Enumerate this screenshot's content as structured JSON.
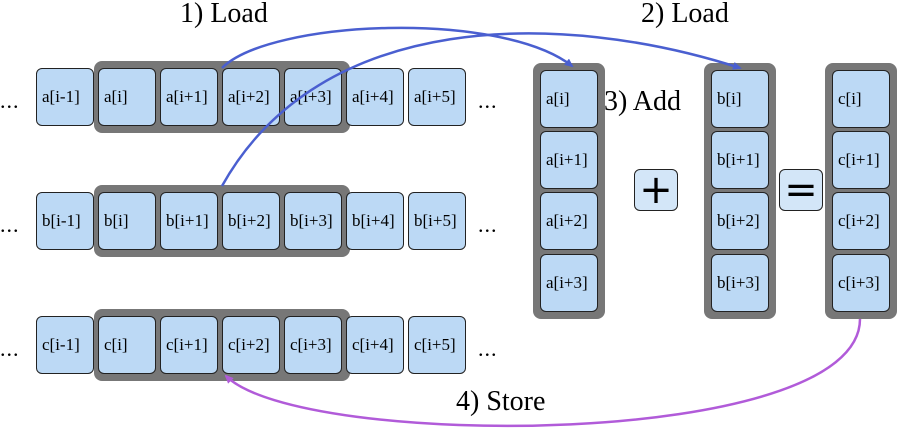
{
  "arrays": [
    {
      "id": "a",
      "cells": [
        "a[i-1]",
        "a[i]",
        "a[i+1]",
        "a[i+2]",
        "a[i+3]",
        "a[i+4]",
        "a[i+5]"
      ],
      "ellipsis": "..."
    },
    {
      "id": "b",
      "cells": [
        "b[i-1]",
        "b[i]",
        "b[i+1]",
        "b[i+2]",
        "b[i+3]",
        "b[i+4]",
        "b[i+5]"
      ],
      "ellipsis": "..."
    },
    {
      "id": "c",
      "cells": [
        "c[i-1]",
        "c[i]",
        "c[i+1]",
        "c[i+2]",
        "c[i+3]",
        "c[i+4]",
        "c[i+5]"
      ],
      "ellipsis": "..."
    }
  ],
  "registers": [
    {
      "id": "a",
      "cells": [
        "a[i]",
        "a[i+1]",
        "a[i+2]",
        "a[i+3]"
      ]
    },
    {
      "id": "b",
      "cells": [
        "b[i]",
        "b[i+1]",
        "b[i+2]",
        "b[i+3]"
      ]
    },
    {
      "id": "c",
      "cells": [
        "c[i]",
        "c[i+1]",
        "c[i+2]",
        "c[i+3]"
      ]
    }
  ],
  "labels": {
    "load1": "1) Load",
    "load2": "2) Load",
    "add": "3) Add",
    "store": "4) Store"
  },
  "operators": {
    "plus": "+",
    "equals": "="
  },
  "colors": {
    "cell_fill": "#bcd9f5",
    "group_border": "#777777",
    "load_arrow": "#4a5fd0",
    "store_arrow": "#b15bd9"
  }
}
